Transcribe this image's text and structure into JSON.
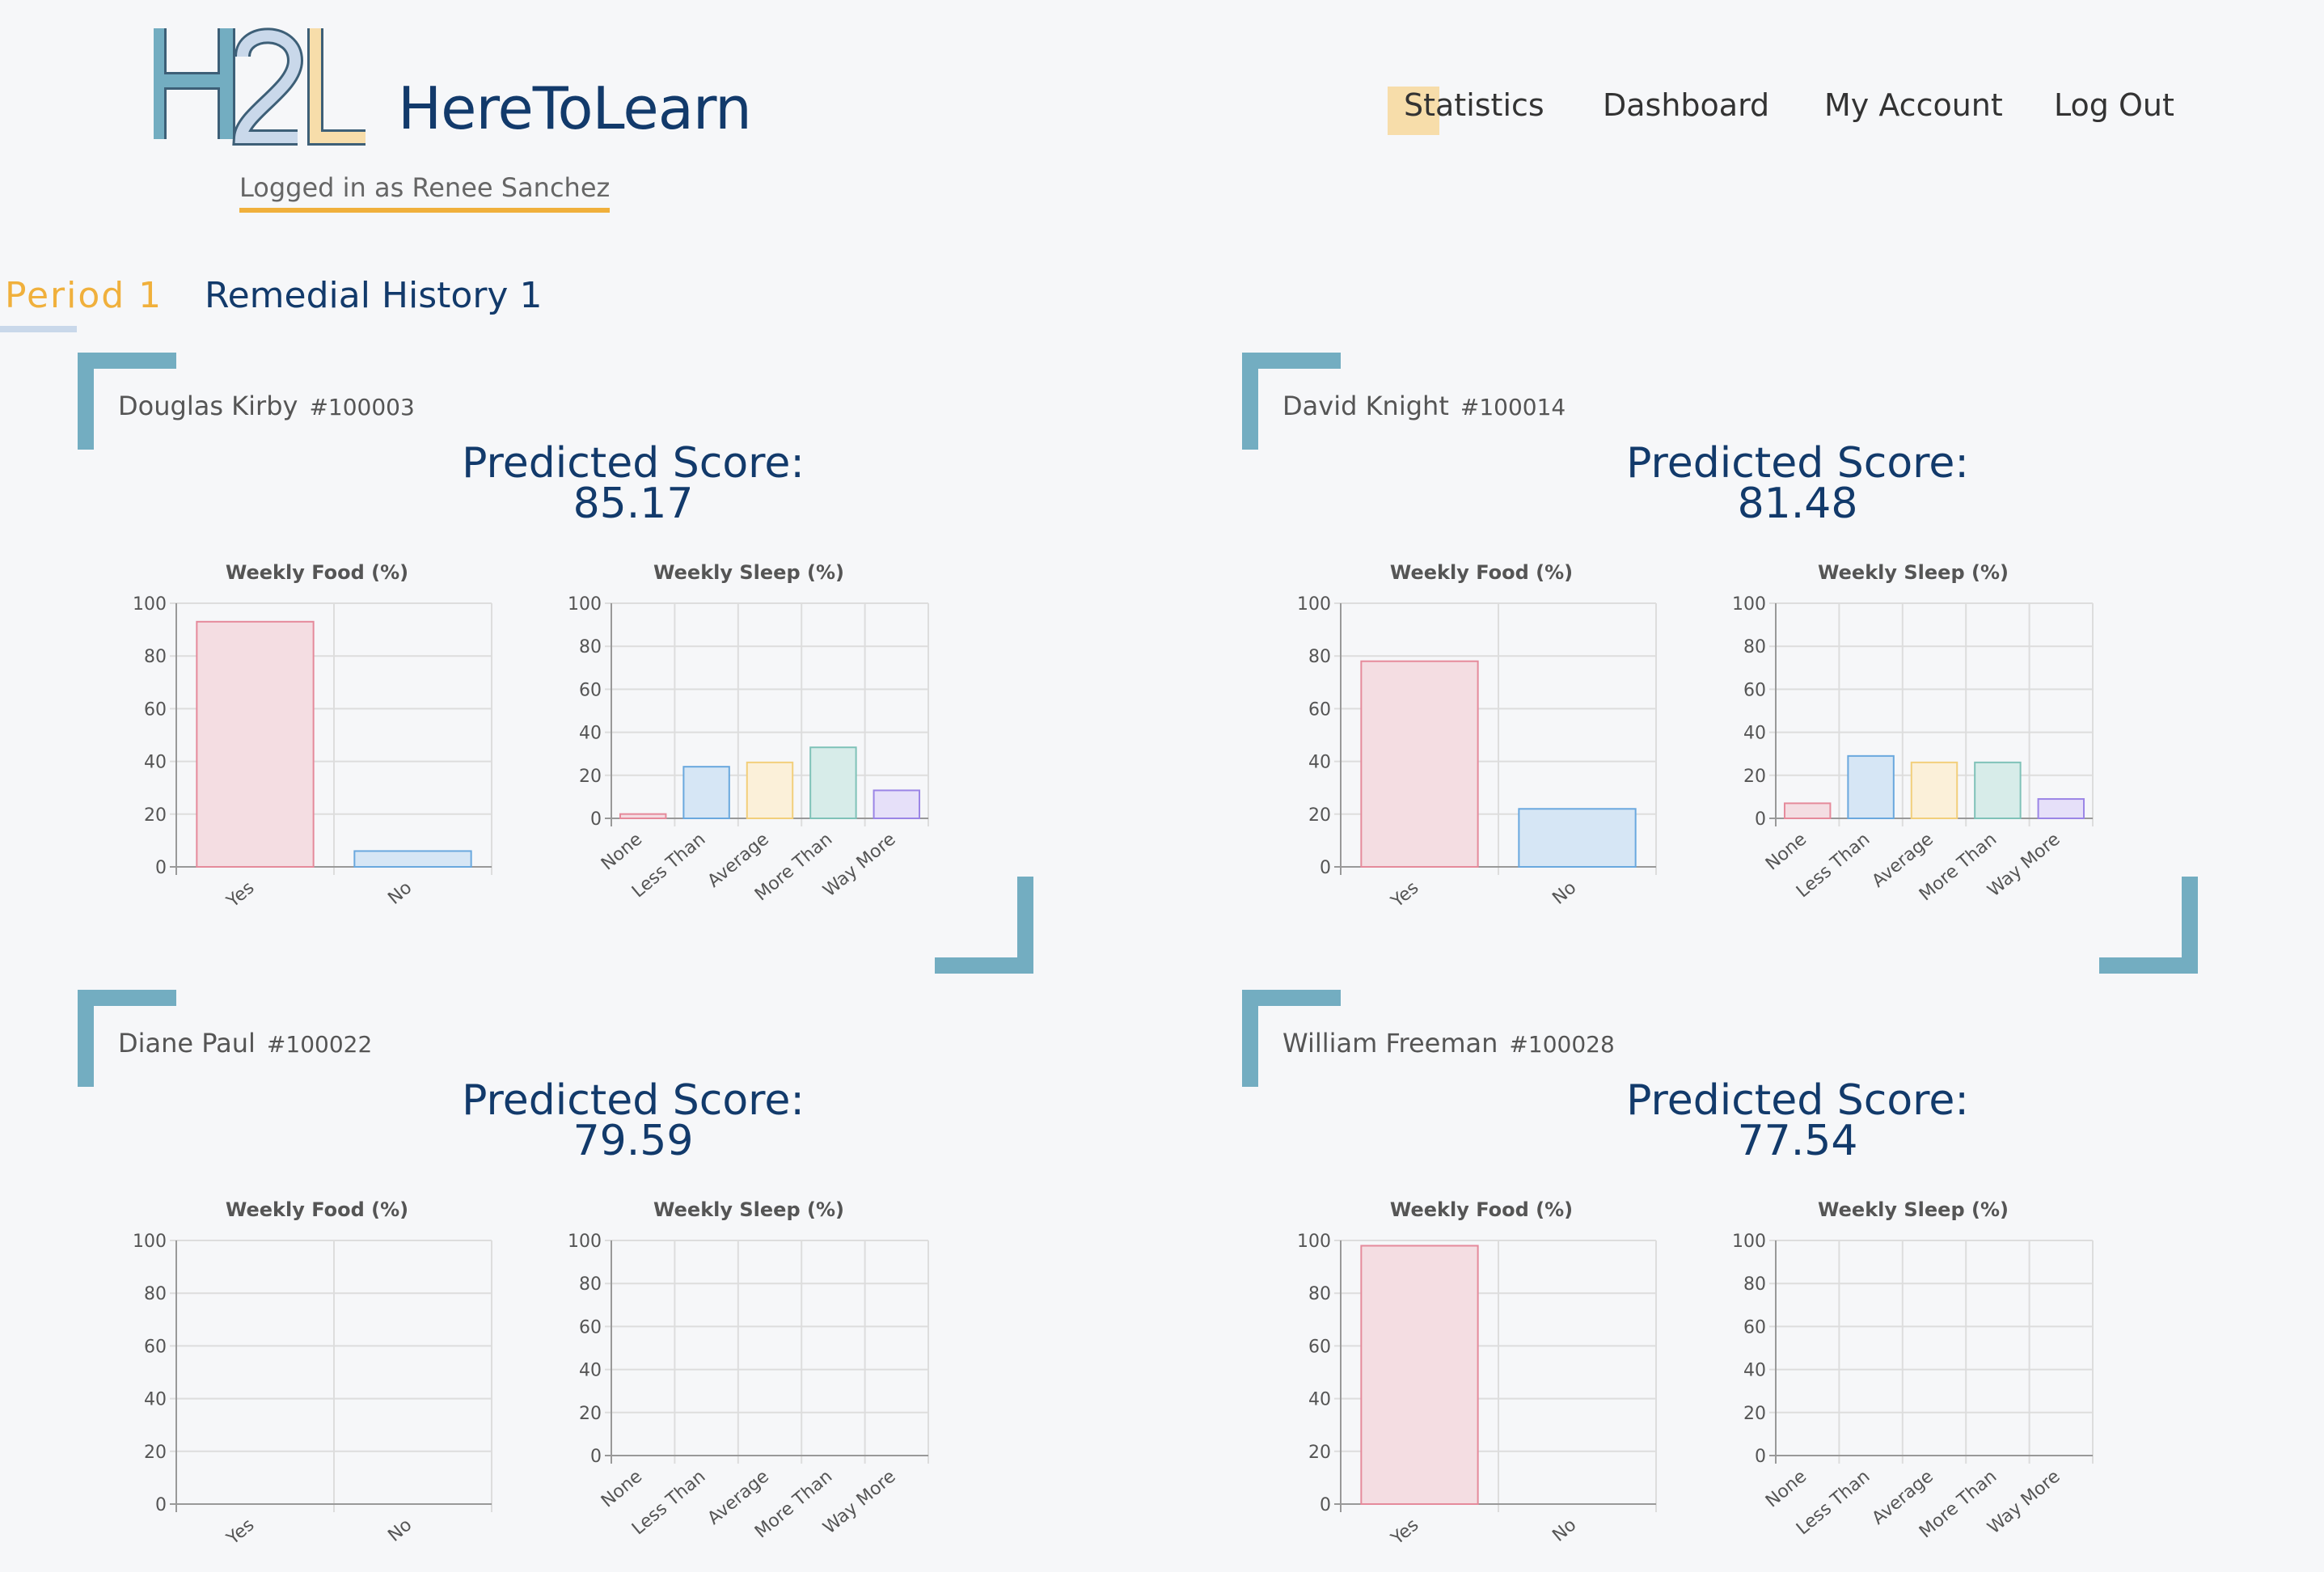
{
  "header": {
    "logo_text": "H2L",
    "brand": "HereToLearn",
    "logged_in": "Logged in as Renee Sanchez",
    "nav": [
      "Statistics",
      "Dashboard",
      "My Account",
      "Log Out"
    ]
  },
  "tabs": {
    "period": "Period 1",
    "class_name": "Remedial History 1"
  },
  "cards": [
    {
      "name": "Douglas Kirby",
      "id": "#100003",
      "score_label": "Predicted Score:",
      "score": "85.17",
      "food": [
        93,
        6
      ],
      "sleep": [
        2,
        24,
        26,
        33,
        13
      ]
    },
    {
      "name": "David Knight",
      "id": "#100014",
      "score_label": "Predicted Score:",
      "score": "81.48",
      "food": [
        78,
        22
      ],
      "sleep": [
        7,
        29,
        26,
        26,
        9
      ]
    },
    {
      "name": "Diane Paul",
      "id": "#100022",
      "score_label": "Predicted Score:",
      "score": "79.59",
      "food": [
        0,
        0
      ],
      "sleep": [
        0,
        0,
        0,
        0,
        0
      ]
    },
    {
      "name": "William Freeman",
      "id": "#100028",
      "score_label": "Predicted Score:",
      "score": "77.54",
      "food": [
        98,
        0
      ],
      "sleep": [
        0,
        0,
        0,
        0,
        0
      ]
    }
  ],
  "chart_data": [
    {
      "type": "bar",
      "title": "Weekly Food (%)",
      "categories": [
        "Yes",
        "No"
      ],
      "ylim": [
        0,
        100
      ],
      "yticks": [
        "0",
        "20",
        "40",
        "60",
        "80",
        "100"
      ]
    },
    {
      "type": "bar",
      "title": "Weekly Sleep (%)",
      "categories": [
        "None",
        "Less Than",
        "Average",
        "More Than",
        "Way More"
      ],
      "ylim": [
        0,
        100
      ],
      "yticks": [
        "0",
        "20",
        "40",
        "60",
        "80",
        "100"
      ]
    }
  ],
  "colors": {
    "accent": "#f0b03c",
    "navy": "#123a6b",
    "corner": "#73adc1",
    "bar_fill": [
      "#f4dde2",
      "#d6e6f5",
      "#fbf0d9",
      "#d7ece9",
      "#e6e0f9"
    ],
    "bar_stroke": [
      "#e58a9b",
      "#6aa8de",
      "#f2cf7b",
      "#7fc2b8",
      "#9b85e6"
    ]
  }
}
